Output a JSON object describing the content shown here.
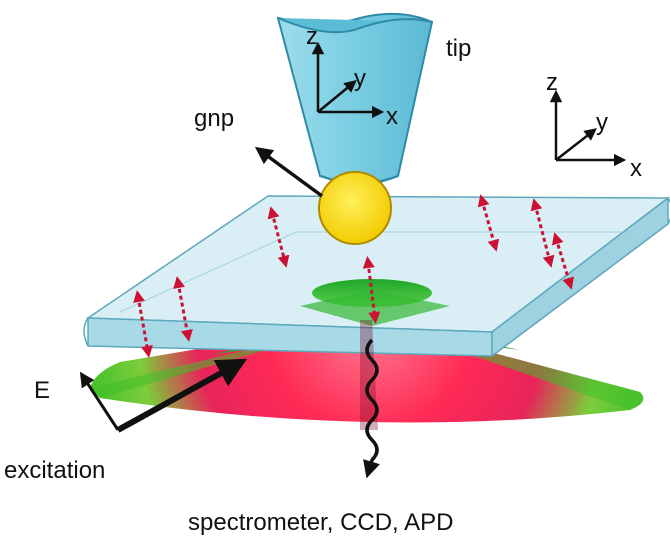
{
  "labels": {
    "tip": "tip",
    "gnp": "gnp",
    "field": "E",
    "excitation": "excitation",
    "detection": "spectrometer, CCD, APD"
  },
  "tip_axes": {
    "z": "z",
    "y": "y",
    "x": "x"
  },
  "sample_axes": {
    "z": "z",
    "y": "y",
    "x": "x"
  },
  "colors": {
    "tip_fill": "#7fd0e3",
    "tip_dark": "#3aa6c6",
    "gnp_fill": "#ffdd00",
    "slab_fill": "#bfe4ee",
    "slab_edge": "#6fb7c9",
    "cone_green": "#2db52d",
    "cone_red": "#ff2a55",
    "dipole_arrows": "#cc1133"
  }
}
